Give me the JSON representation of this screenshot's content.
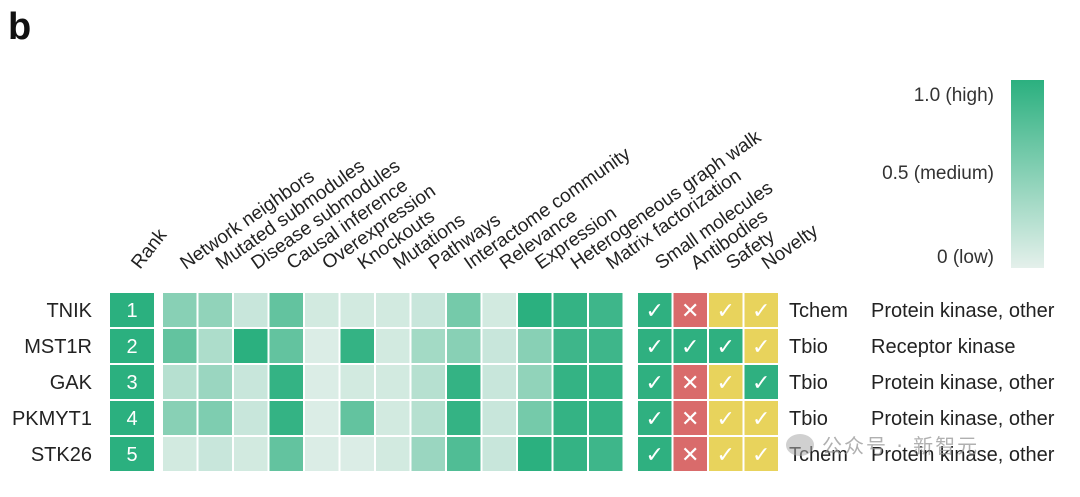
{
  "chart_data": {
    "type": "heatmap",
    "panel_label": "b",
    "rank_header": "Rank",
    "score_columns": [
      "Network neighbors",
      "Mutated submodules",
      "Disease submodules",
      "Causal inference",
      "Overexpression",
      "Knockouts",
      "Mutations",
      "Pathways",
      "Interactome community",
      "Relevance",
      "Expression",
      "Heterogeneous graph walk",
      "Matrix factorization"
    ],
    "flag_columns": [
      "Small molecules",
      "Antibodies",
      "Safety",
      "Novelty"
    ],
    "rows": [
      {
        "gene": "TNIK",
        "rank": "1",
        "scores": [
          0.5,
          0.45,
          0.15,
          0.7,
          0.1,
          0.1,
          0.1,
          0.15,
          0.6,
          0.1,
          1.0,
          0.95,
          0.9
        ],
        "flags": [
          "yes",
          "no",
          "caution",
          "caution"
        ],
        "tdl": "Tchem",
        "family": "Protein kinase, other"
      },
      {
        "gene": "MST1R",
        "rank": "2",
        "scores": [
          0.7,
          0.3,
          1.0,
          0.7,
          0.05,
          0.95,
          0.1,
          0.35,
          0.5,
          0.15,
          0.5,
          0.9,
          0.9
        ],
        "flags": [
          "yes",
          "yes",
          "yes",
          "caution"
        ],
        "tdl": "Tbio",
        "family": "Receptor kinase"
      },
      {
        "gene": "GAK",
        "rank": "3",
        "scores": [
          0.25,
          0.4,
          0.15,
          0.95,
          0.05,
          0.1,
          0.1,
          0.25,
          0.95,
          0.15,
          0.45,
          0.95,
          0.95
        ],
        "flags": [
          "yes",
          "no",
          "caution",
          "yes"
        ],
        "tdl": "Tbio",
        "family": "Protein kinase, other"
      },
      {
        "gene": "PKMYT1",
        "rank": "4",
        "scores": [
          0.5,
          0.55,
          0.15,
          0.95,
          0.05,
          0.7,
          0.1,
          0.25,
          0.95,
          0.15,
          0.6,
          0.95,
          0.95
        ],
        "flags": [
          "yes",
          "no",
          "caution",
          "caution"
        ],
        "tdl": "Tbio",
        "family": "Protein kinase, other"
      },
      {
        "gene": "STK26",
        "rank": "5",
        "scores": [
          0.1,
          0.15,
          0.1,
          0.7,
          0.05,
          0.05,
          0.1,
          0.4,
          0.8,
          0.15,
          1.0,
          0.95,
          0.9
        ],
        "flags": [
          "yes",
          "no",
          "caution",
          "caution"
        ],
        "tdl": "Tchem",
        "family": "Protein kinase, other"
      }
    ],
    "legend": {
      "title": "",
      "min_label": "0 (low)",
      "mid_label": "0.5 (medium)",
      "max_label": "1.0 (high)",
      "range": [
        0,
        1
      ]
    },
    "colors": {
      "score_low": "#e4f0eb",
      "score_high": "#2bb07f",
      "rank_fill": "#2bb07f",
      "flag_yes": "#2fb080",
      "flag_no": "#d96b6b",
      "flag_caution": "#e8d35c"
    },
    "flag_symbols": {
      "yes": "✓",
      "no": "✕",
      "caution": "✓"
    }
  },
  "watermark": {
    "text": "公众号 · 新智元"
  }
}
